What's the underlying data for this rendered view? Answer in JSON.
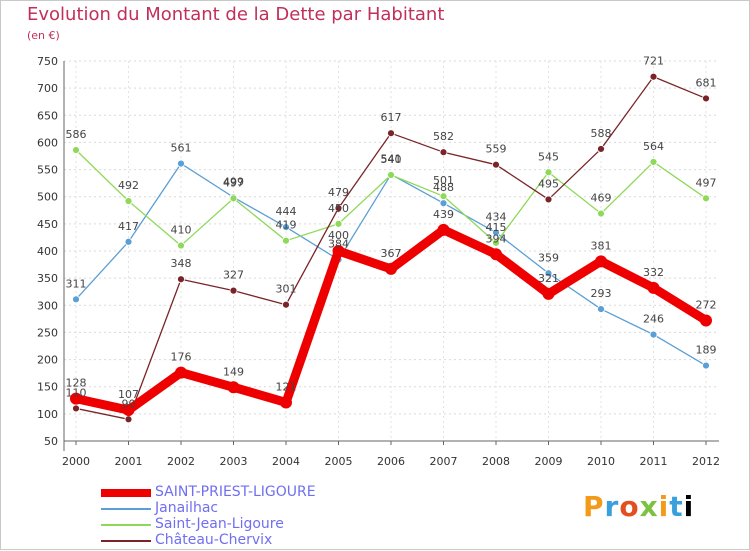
{
  "title": "Evolution du Montant de la Dette par Habitant",
  "subtitle": "(en €)",
  "logo": "Proxiti",
  "chart_data": {
    "type": "line",
    "title": "Evolution du Montant de la Dette par Habitant",
    "ylabel": "(en €)",
    "xlabel": "",
    "categories": [
      "2000",
      "2001",
      "2002",
      "2003",
      "2004",
      "2005",
      "2006",
      "2007",
      "2008",
      "2009",
      "2010",
      "2011",
      "2012"
    ],
    "yticks": [
      50,
      100,
      150,
      200,
      250,
      300,
      350,
      400,
      450,
      500,
      550,
      600,
      650,
      700,
      750
    ],
    "ylim": [
      50,
      750
    ],
    "grid": true,
    "legend_position": "bottom-left",
    "series": [
      {
        "name": "SAINT-PRIEST-LIGOURE",
        "color": "#ee0000",
        "values": [
          128,
          107,
          176,
          149,
          121,
          400,
          367,
          439,
          394,
          321,
          381,
          332,
          272
        ],
        "labels": [
          "128",
          "107",
          "176",
          "149",
          "121",
          "400",
          "367",
          "439",
          "394",
          "321",
          "381",
          "332",
          "272"
        ]
      },
      {
        "name": "Janailhac",
        "color": "#5a9fd6",
        "values": [
          311,
          417,
          561,
          499,
          444,
          384,
          541,
          488,
          434,
          359,
          293,
          246,
          189
        ],
        "labels": [
          "311",
          "417",
          "561",
          "499",
          "444",
          "384",
          "541",
          "488",
          "434",
          "359",
          "293",
          "246",
          "189"
        ]
      },
      {
        "name": "Saint-Jean-Ligoure",
        "color": "#8fd95a",
        "values": [
          586,
          492,
          410,
          497,
          419,
          450,
          540,
          501,
          415,
          545,
          469,
          564,
          497
        ],
        "labels": [
          "586",
          "492",
          "410",
          "497",
          "419",
          "450",
          "540",
          "501",
          "415",
          "545",
          "469",
          "564",
          "497"
        ]
      },
      {
        "name": "Château-Chervix",
        "color": "#7a2428",
        "values": [
          110,
          90,
          348,
          327,
          301,
          479,
          617,
          582,
          559,
          495,
          588,
          721,
          681
        ],
        "labels": [
          "110",
          "90",
          "348",
          "327",
          "301",
          "479",
          "617",
          "582",
          "559",
          "495",
          "588",
          "721",
          "681"
        ]
      }
    ]
  }
}
